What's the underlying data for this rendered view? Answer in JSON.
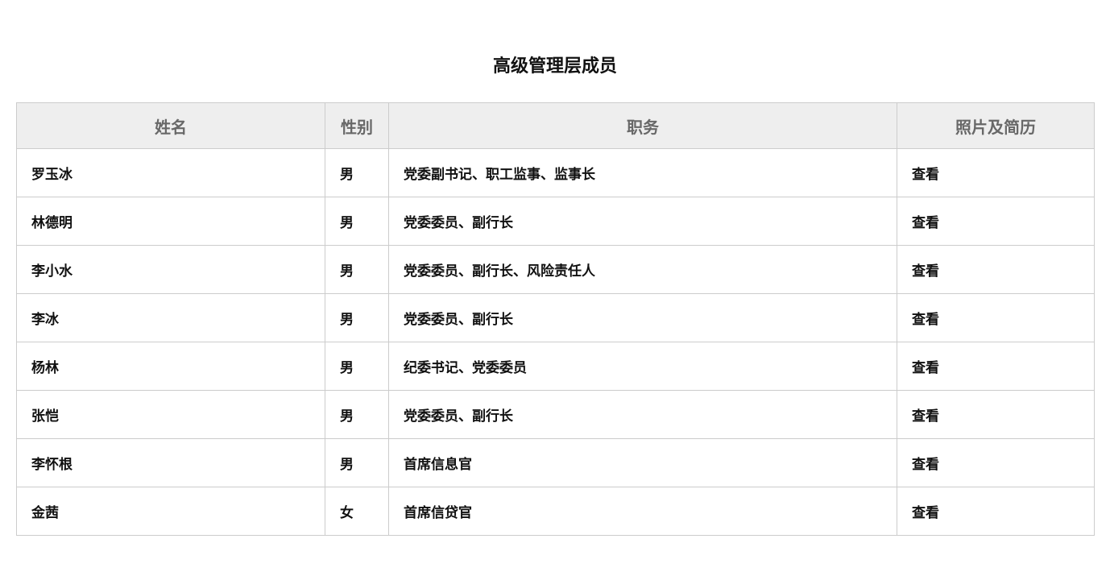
{
  "page": {
    "title": "高级管理层成员"
  },
  "colors": {
    "header_bg": "#eeeeee",
    "header_text": "#686868",
    "body_text": "#111111",
    "border": "#cccccc"
  },
  "table": {
    "columns": [
      {
        "key": "name",
        "label": "姓名"
      },
      {
        "key": "gender",
        "label": "性别"
      },
      {
        "key": "position",
        "label": "职务"
      },
      {
        "key": "photo",
        "label": "照片及简历"
      }
    ],
    "rows": [
      {
        "name": "罗玉冰",
        "gender": "男",
        "position": "党委副书记、职工监事、监事长",
        "action": "查看"
      },
      {
        "name": "林德明",
        "gender": "男",
        "position": "党委委员、副行长",
        "action": "查看"
      },
      {
        "name": "李小水",
        "gender": "男",
        "position": "党委委员、副行长、风险责任人",
        "action": "查看"
      },
      {
        "name": "李冰",
        "gender": "男",
        "position": "党委委员、副行长",
        "action": "查看"
      },
      {
        "name": "杨林",
        "gender": "男",
        "position": "纪委书记、党委委员",
        "action": "查看"
      },
      {
        "name": "张恺",
        "gender": "男",
        "position": "党委委员、副行长",
        "action": "查看"
      },
      {
        "name": "李怀根",
        "gender": "男",
        "position": "首席信息官",
        "action": "查看"
      },
      {
        "name": "金茜",
        "gender": "女",
        "position": "首席信贷官",
        "action": "查看"
      }
    ]
  }
}
